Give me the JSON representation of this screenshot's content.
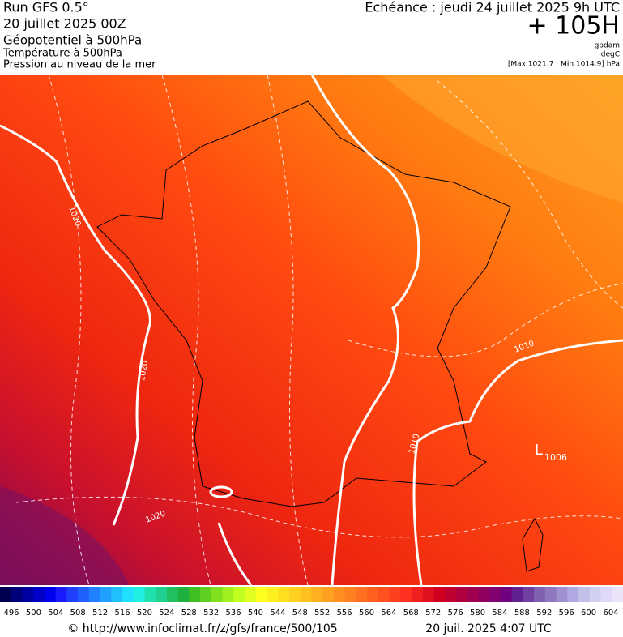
{
  "header": {
    "run": "Run GFS 0.5°",
    "date": "20 juillet 2025 00Z",
    "field1": "Géopotentiel à 500hPa",
    "field2": "Température à 500hPa",
    "field3": "Pression au niveau de la mer",
    "valid": "Echéance : jeudi 24 juillet 2025 9h UTC",
    "lead": "+ 105H",
    "unit1": "gpdam",
    "unit2": "degC",
    "range": "[Max 1021.7 | Min 1014.9] hPa"
  },
  "map": {
    "isobar_labels": [
      "1020",
      "1020",
      "1020",
      "1010",
      "1010"
    ],
    "low": "L",
    "low_value": "1006"
  },
  "colorbar": {
    "labels": [
      496,
      500,
      504,
      508,
      512,
      516,
      520,
      524,
      528,
      532,
      536,
      540,
      544,
      548,
      552,
      556,
      560,
      564,
      568,
      572,
      576,
      580,
      584,
      588,
      592,
      596,
      600,
      604
    ],
    "colors": [
      "#000050",
      "#00007a",
      "#0000a0",
      "#0000c8",
      "#0000ee",
      "#1a1aff",
      "#2040ff",
      "#2060ff",
      "#2080ff",
      "#20a0ff",
      "#20c0ff",
      "#20e0ff",
      "#20f0e0",
      "#20e0b0",
      "#20d090",
      "#20c060",
      "#20b040",
      "#40c020",
      "#60d020",
      "#80e020",
      "#a0f020",
      "#c0ff20",
      "#e0ff20",
      "#ffff20",
      "#fff020",
      "#ffe020",
      "#ffd020",
      "#ffc020",
      "#ffb020",
      "#ffa020",
      "#ff9020",
      "#ff8020",
      "#ff7020",
      "#ff6020",
      "#ff5020",
      "#ff4020",
      "#ff3020",
      "#f02020",
      "#e01020",
      "#d00020",
      "#c00030",
      "#b00040",
      "#a00050",
      "#900060",
      "#800070",
      "#700080",
      "#602090",
      "#7040a0",
      "#8060b0",
      "#9078c0",
      "#a090d0",
      "#b0a8e0",
      "#c0c0e8",
      "#d0d0f0",
      "#e0d8f8",
      "#ebe4f8"
    ]
  },
  "footer": {
    "url": "© http://www.infoclimat.fr/z/gfs/france/500/105",
    "time": "20 juil. 2025  4:07 UTC"
  }
}
